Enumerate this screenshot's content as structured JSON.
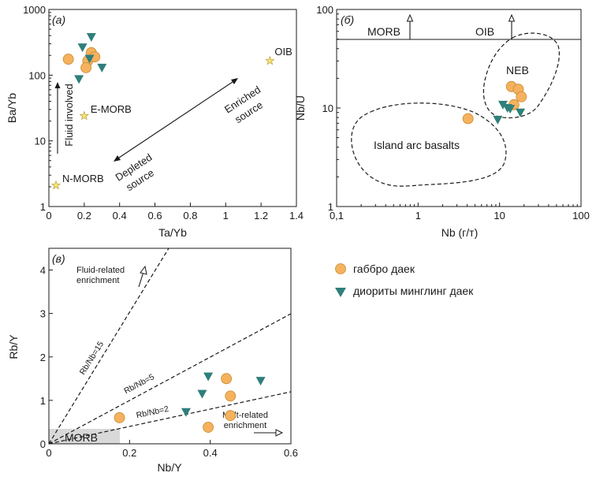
{
  "colors": {
    "gabbro": "#f5b25e",
    "gabbro_edge": "#c98a30",
    "diorite": "#2f7f7a",
    "star": "#f7e27a",
    "star_edge": "#b9a23a",
    "morb_box": "#d9d9d9"
  },
  "legend": {
    "gabbro": "габбро даек",
    "diorite": "диориты минглинг даек"
  },
  "chart_data": [
    {
      "type": "scatter",
      "panel": "(а)",
      "xlabel": "Ta/Yb",
      "ylabel": "Ba/Yb",
      "xlim": [
        0,
        1.4
      ],
      "ylim": [
        1,
        1000
      ],
      "yscale": "log",
      "xticks": [
        0,
        0.2,
        0.4,
        0.6,
        0.8,
        1,
        1.2,
        1.4
      ],
      "xtick_labels": [
        "0",
        "0.2",
        "0.4",
        "0.6",
        "0.8",
        "1",
        "1.2",
        "1.4"
      ],
      "yticks": [
        1,
        10,
        100,
        1000
      ],
      "ytick_labels": [
        "1",
        "10",
        "100",
        "1000"
      ],
      "series": [
        {
          "name": "габбро даек",
          "points": [
            [
              0.11,
              175
            ],
            [
              0.22,
              165
            ],
            [
              0.24,
              220
            ],
            [
              0.26,
              190
            ],
            [
              0.21,
              130
            ]
          ]
        },
        {
          "name": "диориты минглинг даек",
          "points": [
            [
              0.24,
              380
            ],
            [
              0.19,
              265
            ],
            [
              0.23,
              178
            ],
            [
              0.3,
              130
            ],
            [
              0.17,
              87
            ]
          ]
        }
      ],
      "references": [
        {
          "label": "OIB",
          "x": 1.25,
          "y": 165
        },
        {
          "label": "E-MORB",
          "x": 0.2,
          "y": 24
        },
        {
          "label": "N-MORB",
          "x": 0.04,
          "y": 2.1
        }
      ],
      "annotations": {
        "fluid": "Fluid involved",
        "enriched_1": "Enriched",
        "enriched_2": "source",
        "depleted_1": "Depleted",
        "depleted_2": "source"
      }
    },
    {
      "type": "scatter",
      "panel": "(б)",
      "xlabel": "Nb (г/т)",
      "ylabel": "Nb/U",
      "xlim": [
        0.1,
        100
      ],
      "ylim": [
        1,
        100
      ],
      "xscale": "log",
      "yscale": "log",
      "xticks": [
        0.1,
        1,
        10,
        100
      ],
      "xtick_labels": [
        "0,1",
        "1",
        "10",
        "100"
      ],
      "yticks": [
        1,
        10,
        100
      ],
      "ytick_labels": [
        "1",
        "10",
        "100"
      ],
      "series": [
        {
          "name": "габбро даек",
          "points": [
            [
              4.1,
              7.8
            ],
            [
              14,
              16.5
            ],
            [
              17,
              15.5
            ],
            [
              18.5,
              13
            ],
            [
              15,
              10.8
            ]
          ]
        },
        {
          "name": "диориты минглинг даек",
          "points": [
            [
              11,
              10.8
            ],
            [
              12.5,
              10
            ],
            [
              13.5,
              9.8
            ],
            [
              18,
              9
            ],
            [
              9.5,
              7.6
            ]
          ]
        }
      ],
      "annotations": {
        "morb": "MORB",
        "oib": "OIB",
        "neb": "NEB",
        "iab": "Island arc basalts"
      }
    },
    {
      "type": "scatter",
      "panel": "(в)",
      "xlabel": "Nb/Y",
      "ylabel": "Rb/Y",
      "xlim": [
        0,
        0.6
      ],
      "ylim": [
        0,
        4.5
      ],
      "xticks": [
        0,
        0.2,
        0.4,
        0.6
      ],
      "xtick_labels": [
        "0",
        "0.2",
        "0.4",
        "0.6"
      ],
      "yticks": [
        0,
        1,
        2,
        3,
        4
      ],
      "ytick_labels": [
        "0",
        "1",
        "2",
        "3",
        "4"
      ],
      "series": [
        {
          "name": "габбро даек",
          "points": [
            [
              0.175,
              0.6
            ],
            [
              0.395,
              0.38
            ],
            [
              0.44,
              1.5
            ],
            [
              0.45,
              1.1
            ],
            [
              0.45,
              0.65
            ]
          ]
        },
        {
          "name": "диориты минглинг даек",
          "points": [
            [
              0.395,
              1.55
            ],
            [
              0.38,
              1.15
            ],
            [
              0.34,
              0.73
            ],
            [
              0.525,
              1.45
            ]
          ]
        }
      ],
      "annotations": {
        "fluid_1": "Fluid-related",
        "fluid_2": "enrichment",
        "melt_1": "Melt-related",
        "melt_2": "enrichment",
        "rb15": "Rb/Nb=15",
        "rb5": "Rb/Nb=5",
        "rb2": "Rb/Nb=2",
        "morb": "MORB"
      }
    }
  ]
}
